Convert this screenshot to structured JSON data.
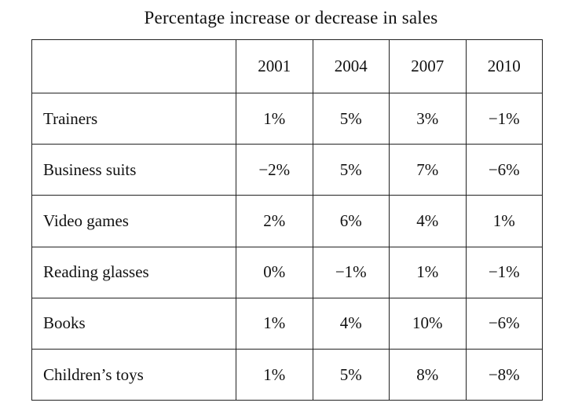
{
  "chart_data": {
    "type": "table",
    "title": "Percentage increase or decrease in sales",
    "columns": [
      "2001",
      "2004",
      "2007",
      "2010"
    ],
    "rows": [
      {
        "label": "Trainers",
        "values": [
          "1%",
          "5%",
          "3%",
          "−1%"
        ]
      },
      {
        "label": "Business suits",
        "values": [
          "−2%",
          "5%",
          "7%",
          "−6%"
        ]
      },
      {
        "label": "Video games",
        "values": [
          "2%",
          "6%",
          "4%",
          "1%"
        ]
      },
      {
        "label": "Reading glasses",
        "values": [
          "0%",
          "−1%",
          "1%",
          "−1%"
        ]
      },
      {
        "label": "Books",
        "values": [
          "1%",
          "4%",
          "10%",
          "−6%"
        ]
      },
      {
        "label": "Children’s toys",
        "values": [
          "1%",
          "5%",
          "8%",
          "−8%"
        ]
      }
    ]
  }
}
